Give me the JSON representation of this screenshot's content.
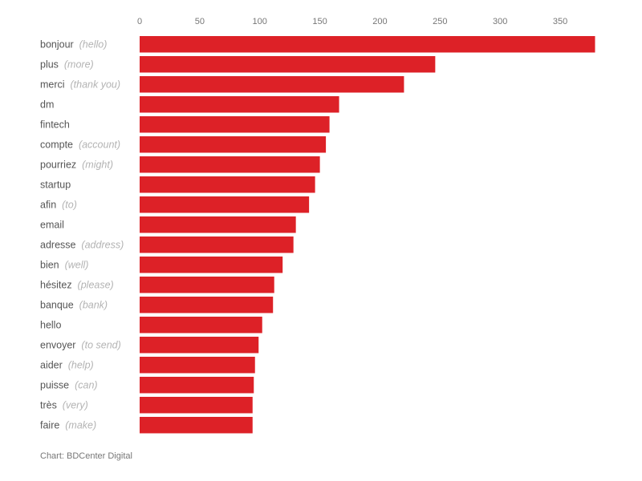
{
  "chart_data": {
    "type": "bar",
    "orientation": "horizontal",
    "categories": [
      {
        "word": "bonjour",
        "translation": "(hello)"
      },
      {
        "word": "plus",
        "translation": "(more)"
      },
      {
        "word": "merci",
        "translation": "(thank you)"
      },
      {
        "word": "dm",
        "translation": ""
      },
      {
        "word": "fintech",
        "translation": ""
      },
      {
        "word": "compte",
        "translation": "(account)"
      },
      {
        "word": "pourriez",
        "translation": "(might)"
      },
      {
        "word": "startup",
        "translation": ""
      },
      {
        "word": "afin",
        "translation": "(to)"
      },
      {
        "word": "email",
        "translation": ""
      },
      {
        "word": "adresse",
        "translation": "(address)"
      },
      {
        "word": "bien",
        "translation": "(well)"
      },
      {
        "word": "hésitez",
        "translation": "(please)"
      },
      {
        "word": "banque",
        "translation": "(bank)"
      },
      {
        "word": "hello",
        "translation": ""
      },
      {
        "word": "envoyer",
        "translation": "(to send)"
      },
      {
        "word": "aider",
        "translation": "(help)"
      },
      {
        "word": "puisse",
        "translation": "(can)"
      },
      {
        "word": "très",
        "translation": "(very)"
      },
      {
        "word": "faire",
        "translation": "(make)"
      }
    ],
    "values": [
      379,
      246,
      220,
      166,
      158,
      155,
      150,
      146,
      141,
      130,
      128,
      119,
      112,
      111,
      102,
      99,
      96,
      95,
      94,
      94
    ],
    "xticks": [
      0,
      50,
      100,
      150,
      200,
      250,
      300,
      350
    ],
    "xlim": [
      0,
      380
    ],
    "axis_position": "top",
    "bar_color": "#dd2127",
    "grid": false,
    "legend": "none"
  },
  "source": "Chart: BDCenter Digital"
}
